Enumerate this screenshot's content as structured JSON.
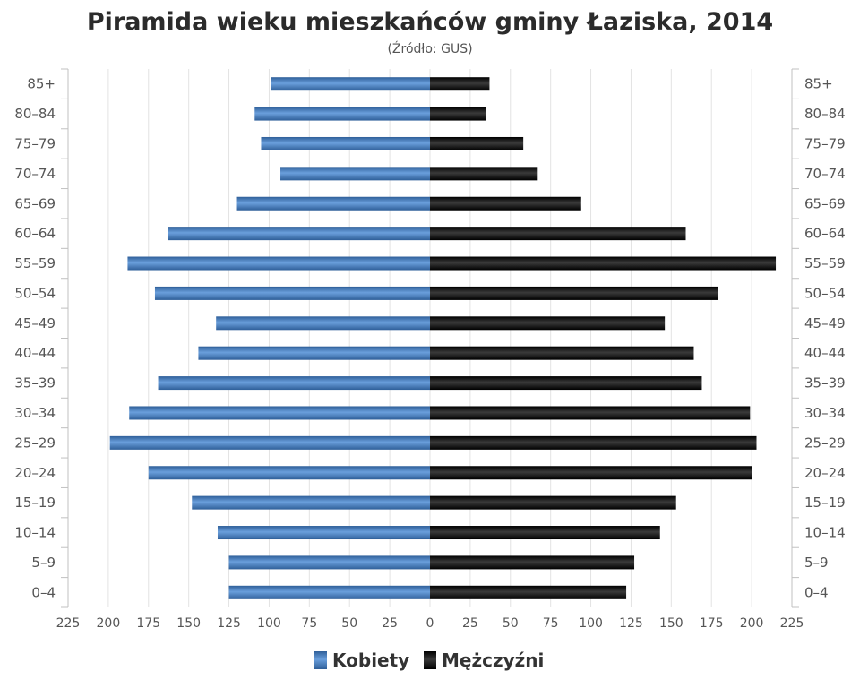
{
  "chart_data": {
    "type": "bar",
    "orientation": "horizontal",
    "title": "Piramida wieku mieszkańców gminy Łaziska, 2014",
    "subtitle": "(Źródło: GUS)",
    "categories": [
      "85+",
      "80–84",
      "75–79",
      "70–74",
      "65–69",
      "60–64",
      "55–59",
      "50–54",
      "45–49",
      "40–44",
      "35–39",
      "30–34",
      "25–29",
      "20–24",
      "15–19",
      "10–14",
      "5–9",
      "0–4"
    ],
    "series": [
      {
        "name": "Kobiety",
        "color": "#4a7fbf",
        "values": [
          99,
          109,
          105,
          93,
          120,
          163,
          188,
          171,
          133,
          144,
          169,
          187,
          199,
          175,
          148,
          132,
          125,
          125
        ]
      },
      {
        "name": "Mężczyźni",
        "color": "#1a1a1a",
        "values": [
          37,
          35,
          58,
          67,
          94,
          159,
          215,
          179,
          146,
          164,
          169,
          199,
          203,
          200,
          153,
          143,
          127,
          122
        ]
      }
    ],
    "xlim": [
      -225,
      225
    ],
    "x_ticks": [
      -225,
      -200,
      -175,
      -150,
      -125,
      -100,
      -75,
      -50,
      -25,
      0,
      25,
      50,
      75,
      100,
      125,
      150,
      175,
      200,
      225
    ],
    "x_tick_labels": [
      "225",
      "200",
      "175",
      "150",
      "125",
      "100",
      "75",
      "50",
      "25",
      "0",
      "25",
      "50",
      "75",
      "100",
      "125",
      "150",
      "175",
      "200",
      "225"
    ],
    "grid": true,
    "legend_position": "bottom-center"
  }
}
